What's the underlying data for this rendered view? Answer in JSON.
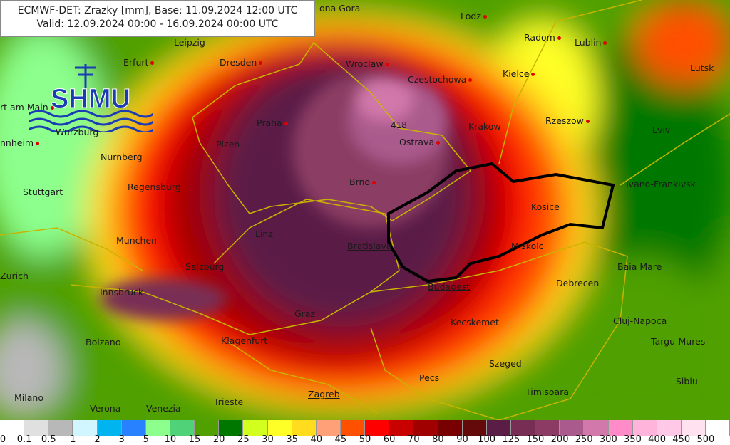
{
  "title": {
    "line1": "ECMWF-DET: Zrazky [mm], Base: 11.09.2024 12:00 UTC",
    "line2": "Valid: 12.09.2024 00:00 - 16.09.2024 00:00 UTC"
  },
  "logo": {
    "text": "SHMU"
  },
  "max_value_label": "418",
  "cities": [
    {
      "name": "ona Gora"
    },
    {
      "name": "Lodz"
    },
    {
      "name": "Radom"
    },
    {
      "name": "Lublin"
    },
    {
      "name": "Leipzig"
    },
    {
      "name": "Erfurt"
    },
    {
      "name": "Dresden"
    },
    {
      "name": "Wroclaw"
    },
    {
      "name": "Czestochowa"
    },
    {
      "name": "Kielce"
    },
    {
      "name": "Lutsk"
    },
    {
      "name": "rt am Main"
    },
    {
      "name": "Wurzburg"
    },
    {
      "name": "Praha",
      "capital": true
    },
    {
      "name": "Krakow"
    },
    {
      "name": "Rzeszow"
    },
    {
      "name": "Lviv"
    },
    {
      "name": "nnheim"
    },
    {
      "name": "Nurnberg"
    },
    {
      "name": "Plzen"
    },
    {
      "name": "Ostrava"
    },
    {
      "name": "Stuttgart"
    },
    {
      "name": "Regensburg"
    },
    {
      "name": "Brno"
    },
    {
      "name": "Ivano-Frankivsk"
    },
    {
      "name": "Kosice"
    },
    {
      "name": "Linz"
    },
    {
      "name": "Munchen"
    },
    {
      "name": "Bratislava",
      "capital": true
    },
    {
      "name": "Miskolc"
    },
    {
      "name": "Salzburg"
    },
    {
      "name": "Baia Mare"
    },
    {
      "name": "Zurich"
    },
    {
      "name": "Innsbruck"
    },
    {
      "name": "Budapest",
      "capital": true
    },
    {
      "name": "Debrecen"
    },
    {
      "name": "Graz"
    },
    {
      "name": "Kecskemet"
    },
    {
      "name": "Cluj-Napoca"
    },
    {
      "name": "Bolzano"
    },
    {
      "name": "Klagenfurt"
    },
    {
      "name": "Targu-Mures"
    },
    {
      "name": "Szeged"
    },
    {
      "name": "Pecs"
    },
    {
      "name": "Sibiu"
    },
    {
      "name": "Milano"
    },
    {
      "name": "Verona"
    },
    {
      "name": "Venezia"
    },
    {
      "name": "Trieste"
    },
    {
      "name": "Zagreb",
      "capital": true
    },
    {
      "name": "Timisoara"
    }
  ],
  "legend": {
    "unit": "mm",
    "labels": [
      "0",
      "0.1",
      "0.5",
      "1",
      "2",
      "3",
      "5",
      "10",
      "15",
      "20",
      "25",
      "30",
      "35",
      "40",
      "45",
      "50",
      "60",
      "70",
      "80",
      "90",
      "100",
      "125",
      "150",
      "200",
      "250",
      "300",
      "350",
      "400",
      "450",
      "500"
    ],
    "colors": [
      "#ffffff",
      "#e0e0e0",
      "#b8b8b8",
      "#d2f6ff",
      "#00b4f0",
      "#2882ff",
      "#8cff8c",
      "#50d278",
      "#50a000",
      "#007800",
      "#d2ff1e",
      "#ffff28",
      "#ffdc1e",
      "#ffa078",
      "#ff5000",
      "#ff0000",
      "#c80000",
      "#a00000",
      "#780000",
      "#640a0a",
      "#5a1e46",
      "#782d55",
      "#8c3c64",
      "#aa5a8c",
      "#d278aa",
      "#ff8cc8",
      "#ffb4dc",
      "#ffc8e6",
      "#ffe1f0",
      "#ffffff"
    ]
  }
}
